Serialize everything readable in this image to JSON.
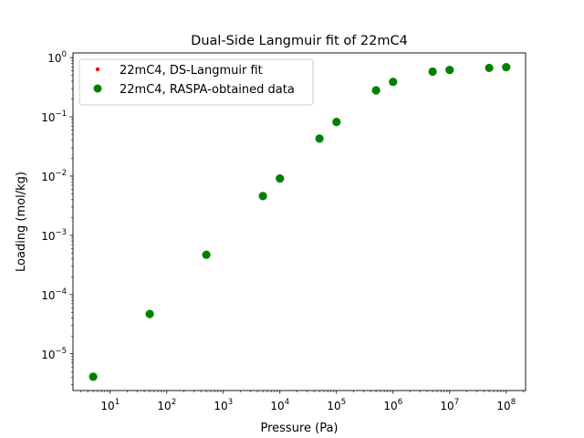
{
  "chart_data": {
    "type": "scatter",
    "title": "Dual-Side Langmuir fit of 22mC4",
    "xlabel": "Pressure (Pa)",
    "ylabel": "Loading (mol/kg)",
    "xscale": "log",
    "yscale": "log",
    "xlim": [
      2.2,
      220000000
    ],
    "ylim": [
      2.4e-06,
      1.2
    ],
    "x_ticks": [
      {
        "value": 10,
        "label": "10^1",
        "base": "10",
        "exp": "1"
      },
      {
        "value": 100,
        "label": "10^2",
        "base": "10",
        "exp": "2"
      },
      {
        "value": 1000,
        "label": "10^3",
        "base": "10",
        "exp": "3"
      },
      {
        "value": 10000,
        "label": "10^4",
        "base": "10",
        "exp": "4"
      },
      {
        "value": 100000,
        "label": "10^5",
        "base": "10",
        "exp": "5"
      },
      {
        "value": 1000000,
        "label": "10^6",
        "base": "10",
        "exp": "6"
      },
      {
        "value": 10000000,
        "label": "10^7",
        "base": "10",
        "exp": "7"
      },
      {
        "value": 100000000,
        "label": "10^8",
        "base": "10",
        "exp": "8"
      }
    ],
    "y_ticks": [
      {
        "value": 1e-05,
        "label": "10^-5",
        "base": "10",
        "exp": "−5"
      },
      {
        "value": 0.0001,
        "label": "10^-4",
        "base": "10",
        "exp": "−4"
      },
      {
        "value": 0.001,
        "label": "10^-3",
        "base": "10",
        "exp": "−3"
      },
      {
        "value": 0.01,
        "label": "10^-2",
        "base": "10",
        "exp": "−2"
      },
      {
        "value": 0.1,
        "label": "10^-1",
        "base": "10",
        "exp": "−1"
      },
      {
        "value": 1,
        "label": "10^0",
        "base": "10",
        "exp": "0"
      }
    ],
    "grid": false,
    "legend_position": "top-left",
    "series": [
      {
        "name": "22mC4, DS-Langmuir fit",
        "color": "#ff0000",
        "marker": "small-dot",
        "x": [],
        "y": []
      },
      {
        "name": "22mC4, RASPA-obtained data",
        "color": "#008000",
        "marker": "circle",
        "x": [
          5,
          50,
          500,
          5000,
          10000,
          50000,
          100000,
          500000,
          1000000,
          5000000,
          10000000,
          50000000,
          100000000
        ],
        "y": [
          4.1e-06,
          4.7e-05,
          0.00047,
          0.0046,
          0.0091,
          0.043,
          0.082,
          0.28,
          0.39,
          0.58,
          0.62,
          0.67,
          0.69
        ]
      }
    ]
  }
}
